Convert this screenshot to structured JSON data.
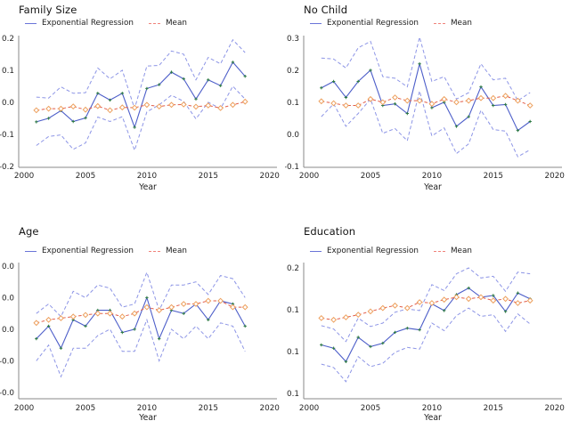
{
  "figure": {
    "background": "#ffffff"
  },
  "colors": {
    "regression_line": "#4d5ec9",
    "ci_band_line": "#8d95e6",
    "mean_line": "#e25c49",
    "marker_plus_green": "#2e7a45",
    "diamond_orange": "#eda05e",
    "legend_regression_swatch": "#6a74d8",
    "legend_mean_swatch": "#f0827a",
    "spine_gray": "#8a8a8a",
    "text_dark": "#262626"
  },
  "chart_data": [
    {
      "type": "line",
      "title": "Family Size",
      "xlabel": "Year",
      "legend_position": "top-left",
      "grid": false,
      "xlim": [
        1999.56,
        2020.6
      ],
      "ylim": [
        -0.203,
        0.208
      ],
      "x_ticks": [
        2000,
        2005,
        2010,
        2015,
        2020
      ],
      "x_tick_labels": [
        "2000",
        "2005",
        "2010",
        "2015",
        "2020"
      ],
      "y_ticks": [
        0.2,
        0.1,
        0.0,
        -0.1,
        -0.2
      ],
      "y_tick_labels": [
        "0.2",
        "0.1",
        "0.0",
        "-0.1",
        "-0.2"
      ],
      "x": [
        2001,
        2002,
        2003,
        2004,
        2005,
        2006,
        2007,
        2008,
        2009,
        2010,
        2011,
        2012,
        2013,
        2014,
        2015,
        2016,
        2017,
        2018
      ],
      "series": [
        {
          "name": "Exponential Regression",
          "role": "regression",
          "values": [
            -0.061,
            -0.05,
            -0.026,
            -0.06,
            -0.049,
            0.028,
            0.007,
            0.028,
            -0.078,
            0.043,
            0.055,
            0.094,
            0.073,
            0.01,
            0.07,
            0.052,
            0.125,
            0.081
          ]
        },
        {
          "role": "ci_upper",
          "values": [
            0.016,
            0.013,
            0.048,
            0.028,
            0.03,
            0.107,
            0.073,
            0.1,
            -0.02,
            0.113,
            0.115,
            0.16,
            0.15,
            0.07,
            0.14,
            0.12,
            0.195,
            0.155
          ]
        },
        {
          "role": "ci_lower",
          "values": [
            -0.135,
            -0.107,
            -0.102,
            -0.147,
            -0.127,
            -0.046,
            -0.06,
            -0.045,
            -0.15,
            -0.03,
            -0.008,
            0.022,
            0.003,
            -0.052,
            0.0,
            -0.02,
            0.05,
            0.01
          ]
        },
        {
          "name": "Mean",
          "role": "mean",
          "values": [
            -0.025,
            -0.02,
            -0.02,
            -0.013,
            -0.023,
            -0.012,
            -0.025,
            -0.016,
            -0.017,
            -0.008,
            -0.013,
            -0.008,
            -0.007,
            -0.014,
            -0.01,
            -0.018,
            -0.008,
            0.002
          ]
        }
      ]
    },
    {
      "type": "line",
      "title": "No Child",
      "xlabel": "Year",
      "legend_position": "top-left",
      "grid": false,
      "xlim": [
        1999.56,
        2020.6
      ],
      "ylim": [
        -0.103,
        0.308
      ],
      "x_ticks": [
        2000,
        2005,
        2010,
        2015,
        2020
      ],
      "x_tick_labels": [
        "2000",
        "2005",
        "2010",
        "2015",
        "2020"
      ],
      "y_ticks": [
        0.3,
        0.2,
        0.1,
        0.0,
        -0.1
      ],
      "y_tick_labels": [
        "0.3",
        "0.2",
        "0.1",
        "0.0",
        "-0.1"
      ],
      "x": [
        2001,
        2002,
        2003,
        2004,
        2005,
        2006,
        2007,
        2008,
        2009,
        2010,
        2011,
        2012,
        2013,
        2014,
        2015,
        2016,
        2017,
        2018
      ],
      "series": [
        {
          "name": "Exponential Regression",
          "role": "regression",
          "values": [
            0.145,
            0.165,
            0.115,
            0.165,
            0.2,
            0.09,
            0.095,
            0.065,
            0.22,
            0.083,
            0.1,
            0.025,
            0.055,
            0.148,
            0.09,
            0.093,
            0.012,
            0.04
          ]
        },
        {
          "role": "ci_upper",
          "values": [
            0.238,
            0.235,
            0.207,
            0.27,
            0.29,
            0.18,
            0.175,
            0.148,
            0.303,
            0.165,
            0.18,
            0.11,
            0.13,
            0.22,
            0.17,
            0.175,
            0.105,
            0.13
          ]
        },
        {
          "role": "ci_lower",
          "values": [
            0.055,
            0.095,
            0.025,
            0.065,
            0.11,
            0.003,
            0.018,
            -0.02,
            0.135,
            -0.005,
            0.02,
            -0.06,
            -0.03,
            0.075,
            0.015,
            0.01,
            -0.07,
            -0.048
          ]
        },
        {
          "name": "Mean",
          "role": "mean",
          "values": [
            0.103,
            0.097,
            0.09,
            0.09,
            0.11,
            0.1,
            0.115,
            0.105,
            0.105,
            0.095,
            0.11,
            0.1,
            0.105,
            0.113,
            0.113,
            0.12,
            0.105,
            0.09
          ]
        }
      ]
    },
    {
      "type": "line",
      "title": "Age",
      "xlabel": "Year",
      "legend_position": "top-left",
      "grid": false,
      "xlim": [
        1999.56,
        2020.6
      ],
      "ylim": [
        -0.022,
        0.0211
      ],
      "x_ticks": [
        2000,
        2005,
        2010,
        2015,
        2020
      ],
      "x_tick_labels": [
        "2000",
        "2005",
        "2010",
        "2015",
        "2020"
      ],
      "y_ticks": [
        0.02,
        0.01,
        0.0,
        -0.01,
        -0.02
      ],
      "y_tick_labels": [
        "0.0",
        "0.0",
        "0.0",
        "-0.0",
        "-0.0"
      ],
      "x": [
        2001,
        2002,
        2003,
        2004,
        2005,
        2006,
        2007,
        2008,
        2009,
        2010,
        2011,
        2012,
        2013,
        2014,
        2015,
        2016,
        2017,
        2018
      ],
      "series": [
        {
          "name": "Exponential Regression",
          "role": "regression",
          "values": [
            -0.003,
            0.001,
            -0.006,
            0.003,
            0.001,
            0.006,
            0.006,
            -0.001,
            0.0,
            0.01,
            -0.003,
            0.006,
            0.005,
            0.008,
            0.003,
            0.009,
            0.008,
            0.001
          ]
        },
        {
          "role": "ci_upper",
          "values": [
            0.005,
            0.008,
            0.004,
            0.012,
            0.01,
            0.014,
            0.013,
            0.007,
            0.008,
            0.018,
            0.006,
            0.014,
            0.014,
            0.015,
            0.011,
            0.017,
            0.016,
            0.01
          ]
        },
        {
          "role": "ci_lower",
          "values": [
            -0.01,
            -0.005,
            -0.015,
            -0.006,
            -0.006,
            -0.002,
            0.0,
            -0.007,
            -0.007,
            0.003,
            -0.01,
            0.0,
            -0.003,
            0.001,
            -0.003,
            0.002,
            0.001,
            -0.007
          ]
        },
        {
          "name": "Mean",
          "role": "mean",
          "values": [
            0.002,
            0.003,
            0.0035,
            0.004,
            0.0045,
            0.005,
            0.005,
            0.004,
            0.005,
            0.007,
            0.006,
            0.007,
            0.008,
            0.008,
            0.009,
            0.009,
            0.007,
            0.007
          ]
        }
      ]
    },
    {
      "type": "line",
      "title": "Education",
      "xlabel": "Year",
      "legend_position": "top-left",
      "grid": false,
      "xlim": [
        1999.56,
        2020.6
      ],
      "ylim": [
        0.0436,
        0.2064
      ],
      "x_ticks": [
        2000,
        2005,
        2010,
        2015,
        2020
      ],
      "x_tick_labels": [
        "2000",
        "2005",
        "2010",
        "2015",
        "2020"
      ],
      "y_ticks": [
        0.2,
        0.15,
        0.1,
        0.05
      ],
      "y_tick_labels": [
        "0.2",
        "0.1",
        "0.1",
        "0.1"
      ],
      "x": [
        2001,
        2002,
        2003,
        2004,
        2005,
        2006,
        2007,
        2008,
        2009,
        2010,
        2011,
        2012,
        2013,
        2014,
        2015,
        2016,
        2017,
        2018
      ],
      "series": [
        {
          "name": "Exponential Regression",
          "role": "regression",
          "values": [
            0.108,
            0.104,
            0.088,
            0.117,
            0.106,
            0.11,
            0.123,
            0.128,
            0.126,
            0.157,
            0.149,
            0.168,
            0.176,
            0.165,
            0.167,
            0.148,
            0.17,
            0.163
          ]
        },
        {
          "role": "ci_upper",
          "values": [
            0.131,
            0.127,
            0.112,
            0.14,
            0.13,
            0.134,
            0.147,
            0.151,
            0.149,
            0.18,
            0.173,
            0.193,
            0.2,
            0.188,
            0.19,
            0.172,
            0.195,
            0.193
          ]
        },
        {
          "role": "ci_lower",
          "values": [
            0.085,
            0.081,
            0.064,
            0.094,
            0.082,
            0.086,
            0.099,
            0.105,
            0.103,
            0.134,
            0.125,
            0.143,
            0.152,
            0.142,
            0.144,
            0.124,
            0.145,
            0.133
          ]
        },
        {
          "name": "Mean",
          "role": "mean",
          "values": [
            0.14,
            0.138,
            0.141,
            0.144,
            0.148,
            0.152,
            0.155,
            0.152,
            0.159,
            0.158,
            0.162,
            0.165,
            0.163,
            0.165,
            0.161,
            0.163,
            0.158,
            0.161
          ]
        }
      ]
    }
  ]
}
